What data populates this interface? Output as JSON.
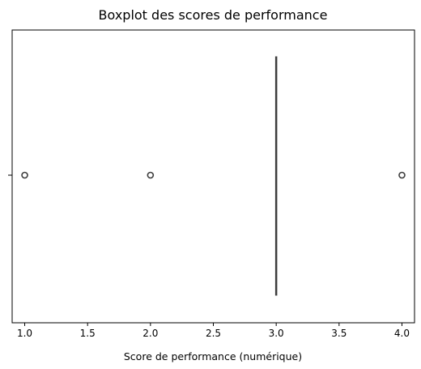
{
  "chart_data": {
    "type": "boxplot",
    "orientation": "horizontal",
    "title": "Boxplot des scores de performance",
    "xlabel": "Score de performance (numérique)",
    "ylabel": "",
    "xlim": [
      0.9,
      4.1
    ],
    "x_ticks": [
      1.0,
      1.5,
      2.0,
      2.5,
      3.0,
      3.5,
      4.0
    ],
    "x_tick_labels": [
      "1.0",
      "1.5",
      "2.0",
      "2.5",
      "3.0",
      "3.5",
      "4.0"
    ],
    "grid": false,
    "box": {
      "whisker_low": 3.0,
      "q1": 3.0,
      "median": 3.0,
      "q3": 3.0,
      "whisker_high": 3.0
    },
    "outliers": [
      1.0,
      2.0,
      4.0
    ],
    "colors": {
      "box": "#3d3d3d",
      "outlier_edge": "#3d3d3d",
      "axis": "#000000"
    }
  }
}
